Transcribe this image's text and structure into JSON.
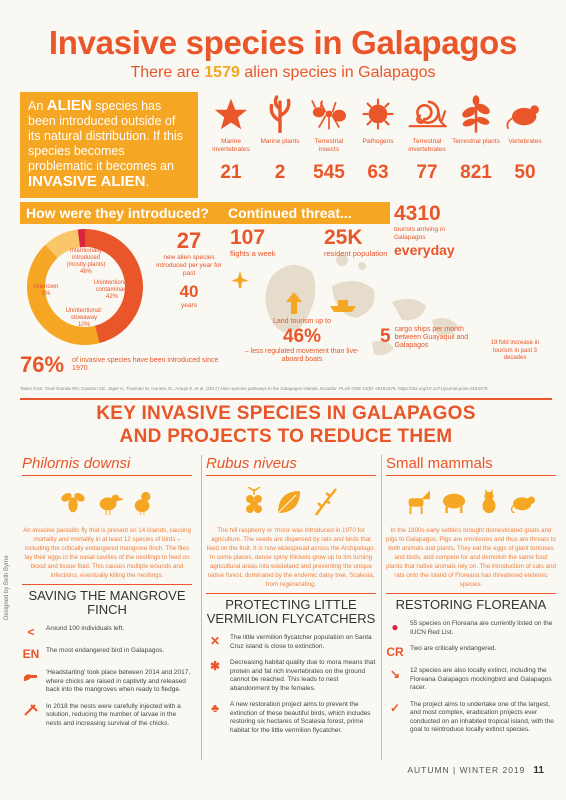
{
  "header": {
    "title": "Invasive species in Galapagos",
    "subtitle_pre": "There are ",
    "subtitle_num": "1579",
    "subtitle_post": " alien species in Galapagos"
  },
  "alien_box": {
    "p1": "An ",
    "w1": "ALIEN",
    "p2": " species has been introduced outside of its natural distribution. If this species becomes problematic it becomes an ",
    "w2": "INVASIVE ALIEN",
    "p3": "."
  },
  "categories": [
    {
      "label": "Marine invertebrates",
      "value": "21",
      "icon": "starfish-icon"
    },
    {
      "label": "Marine plants",
      "value": "2",
      "icon": "seaweed-icon"
    },
    {
      "label": "Terrestrial insects",
      "value": "545",
      "icon": "ant-icon"
    },
    {
      "label": "Pathogens",
      "value": "63",
      "icon": "pathogen-icon"
    },
    {
      "label": "Terrestrial invertebrates",
      "value": "77",
      "icon": "snail-icon"
    },
    {
      "label": "Terrestrial plants",
      "value": "821",
      "icon": "plant-icon"
    },
    {
      "label": "Vertebrates",
      "value": "50",
      "icon": "rodent-icon"
    }
  ],
  "intro": {
    "heading": "How were they introduced?",
    "donut": [
      {
        "label": "Intentionally introduced (mostly plants)",
        "pct": "46%",
        "value": 46
      },
      {
        "label": "Unintentional: contaminant",
        "pct": "42%",
        "value": 42
      },
      {
        "label": "Unintentional: stowaway",
        "pct": "10%",
        "value": 10
      },
      {
        "label": "Unknown",
        "pct": "2%",
        "value": 2
      }
    ],
    "stat1_num": "27",
    "stat1_txt": "new alien species introduced per year for past",
    "stat2_num": "40",
    "stat2_txt": "years",
    "stat3_num": "76%",
    "stat3_txt": "of invasive species have been introduced since 1970"
  },
  "threat": {
    "heading": "Continued threat...",
    "flights_num": "107",
    "flights_txt": "flights a week",
    "pop_num": "25K",
    "pop_txt": "resident population",
    "tourists_num": "4310",
    "tourists_txt": "tourists arriving in Galapagos",
    "tourists_every": "everyday",
    "land_pre": "Land tourism up to",
    "land_num": "46%",
    "land_post": "– less regulated movement than live-aboard boats",
    "ships_num": "5",
    "ships_txt": "cargo ships per month between Guayaquil and Galapagos",
    "fold_txt": "19 fold increase in tourism in past 3 decades"
  },
  "footnote": "Taken from: Toral-Granda MV, Causton CE, Jäger H, Trueman M, Izurieta JC, Araujo E, et al. (2017) Alien species pathways to the Galapagos Islands, Ecuador. PLoS ONE 12(9): e0184379. https://doi.org/10.1371/journal.pone.0184379",
  "key": {
    "line1": "KEY INVASIVE SPECIES IN GALAPAGOS",
    "line2": "AND PROJECTS TO REDUCE THEM"
  },
  "col1": {
    "heading": "Philornis downsi",
    "text": "An invasive parasitic fly that is present on 14 islands, causing mortality and mortality in at least 12 species of birds – including the critically endangered mangrove finch. The flies lay their eggs in the nasal cavities of the nestlings to feed on blood and tissue fluid. This causes multiple wounds and infections, eventually killing the nestlings.",
    "section": "SAVING THE MANGROVE FINCH",
    "items": [
      {
        "mark": "<",
        "text": "Around 100 individuals left."
      },
      {
        "mark": "EN",
        "text": "The most endangered bird in Galapagos."
      },
      {
        "mark": "",
        "text": "'Headstarting' took place between 2014 and 2017, where chicks are raised in captivity and released back into the mangroves when ready to fledge."
      },
      {
        "mark": "",
        "text": "In 2018 the nests were carefully injected with a solution, reducing the number of larvae in the nests and increasing survival of the chicks."
      }
    ]
  },
  "col2": {
    "heading": "Rubus niveus",
    "text": "The hill raspberry or 'mora' was introduced in 1970 for agriculture. The seeds are dispersed by rats and birds that feed on the fruit. It is now widespread across the Archipelago. In some places, dense spiny thickets grow up to 3m turning agricultural areas into wasteland and preventing the unique native forest, dominated by the endemic daisy tree, Scalesia, from regenerating.",
    "section": "PROTECTING LITTLE VERMILION FLYCATCHERS",
    "items": [
      {
        "mark": "✕",
        "text": "The little vermilion flycatcher population on Santa Cruz island is close to extinction."
      },
      {
        "mark": "✱",
        "text": "Decreasing habitat quality due to mora means that protein and fat rich invertebrates on the ground cannot be reached. This leads to nest abandonment by the females."
      },
      {
        "mark": "♣",
        "text": "A new restoration project aims to prevent the extinction of these beautiful birds, which includes restoring six hectares of Scalesia forest, prime habitat for the little vermilion flycatcher."
      }
    ]
  },
  "col3": {
    "heading": "Small mammals",
    "text": "In the 1800s early settlers brought domesticated goats and pigs to Galapagos. Pigs are omnivores and thus are threats to both animals and plants. They eat the eggs of giant tortoises and birds, and compete for and demolish the same food plants that native animals rely on. The introduction of cats and rats onto the island of Floreana has threatened endemic species.",
    "section": "RESTORING FLOREANA",
    "items": [
      {
        "mark": "●",
        "text": "55 species on Floreana are currently listed on the IUCN Red List."
      },
      {
        "mark": "CR",
        "text": "Two are critically endangered."
      },
      {
        "mark": "↘",
        "text": "12 species are also locally extinct, including the Floreana Galapagos mockingbird and Galapagos racer."
      },
      {
        "mark": "✓",
        "text": "The project aims to undertake one of the largest, and most complex, eradication projects ever conducted on an inhabited tropical island, with the goal to reintroduce locally extinct species."
      }
    ]
  },
  "credit": "Designed by Beth Byrne",
  "footer": {
    "season": "AUTUMN | WINTER 2019",
    "page": "11"
  },
  "colors": {
    "accent": "#e8562a",
    "orange": "#f5a623",
    "red": "#d7263d"
  }
}
